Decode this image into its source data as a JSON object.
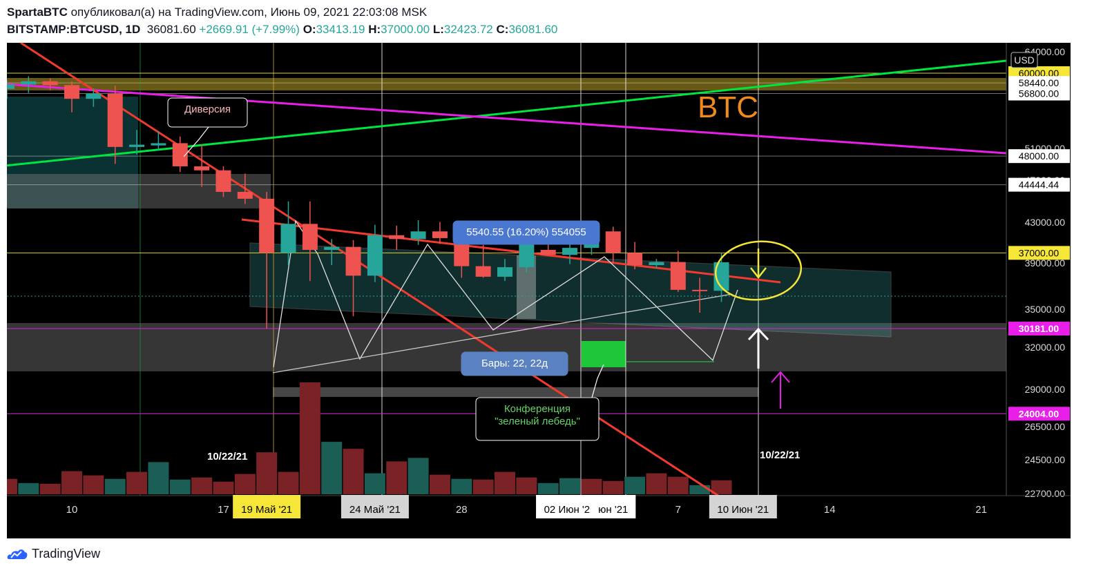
{
  "header": {
    "author": "SpartaBTC",
    "published_text": "опубликовал(а) на TradingView.com, Июнь 09, 2021 22:03:08 MSK",
    "symbol": "BITSTAMP:BTCUSD, 1D",
    "last": "36081.60",
    "change": "+2669.91 (+7.99%)",
    "o_label": "O:",
    "o": "33413.19",
    "h_label": "H:",
    "h": "37000.00",
    "l_label": "L:",
    "l": "32423.72",
    "c_label": "C:",
    "c": "36081.60"
  },
  "brand": {
    "name": "TradingView"
  },
  "colors": {
    "up": "#26a69a",
    "down": "#ef5350",
    "green_line": "#00e640",
    "magenta": "#e91ee9",
    "red_line": "#f23a2f",
    "yellow": "#f5e637",
    "label_blue": "#4a78d0"
  },
  "chart_data": {
    "type": "candlestick",
    "currency": "USD",
    "watermark": "BTC",
    "price_axis": {
      "ticks": [
        "64000.00",
        "51000.00",
        "47000.00",
        "43000.00",
        "39000.00",
        "35000.00",
        "32000.00",
        "29000.00",
        "26500.00",
        "24500.00",
        "22700.00"
      ]
    },
    "price_labels": [
      {
        "text": "60000.00",
        "value": 60000,
        "style": "yellow"
      },
      {
        "text": "58440.00",
        "value": 58440,
        "style": "white"
      },
      {
        "text": "56800.00",
        "value": 56800,
        "style": "white"
      },
      {
        "text": "48000.00",
        "value": 48000,
        "style": "white"
      },
      {
        "text": "44444.44",
        "value": 44444.44,
        "style": "white"
      },
      {
        "text": "37000.00",
        "value": 37000,
        "style": "yellow"
      },
      {
        "text": "30181.00",
        "value": 30181,
        "style": "magenta"
      },
      {
        "text": "24004.00",
        "value": 24004,
        "style": "magenta"
      }
    ],
    "time_axis": {
      "ticks": [
        {
          "text": "10",
          "day": 0
        },
        {
          "text": "17",
          "day": 7
        },
        {
          "text": "28",
          "day": 18
        },
        {
          "text": "7",
          "day": 28
        },
        {
          "text": "14",
          "day": 35
        },
        {
          "text": "21",
          "day": 42
        }
      ],
      "highlighted": [
        {
          "text": "19 Май '21",
          "day": 9,
          "style": "yellow"
        },
        {
          "text": "24 Май '21",
          "day": 14,
          "style": "light"
        },
        {
          "text": "02 Июн '21",
          "day": 23,
          "style": "white"
        },
        {
          "text": "юн '21",
          "day": 25,
          "style": "white"
        },
        {
          "text": "10 Июн '21",
          "day": 31,
          "style": "light"
        }
      ]
    },
    "candles": [
      {
        "day": -3,
        "o": 57500,
        "h": 58800,
        "l": 56000,
        "c": 58200
      },
      {
        "day": -2,
        "o": 58200,
        "h": 59500,
        "l": 56900,
        "c": 58700
      },
      {
        "day": -1,
        "o": 58700,
        "h": 59200,
        "l": 57300,
        "c": 58100
      },
      {
        "day": 0,
        "o": 58100,
        "h": 58700,
        "l": 54000,
        "c": 56000
      },
      {
        "day": 1,
        "o": 56000,
        "h": 57600,
        "l": 54800,
        "c": 56800
      },
      {
        "day": 2,
        "o": 56800,
        "h": 58000,
        "l": 47000,
        "c": 49200
      },
      {
        "day": 3,
        "o": 49200,
        "h": 51500,
        "l": 48200,
        "c": 49500
      },
      {
        "day": 4,
        "o": 49400,
        "h": 51300,
        "l": 48700,
        "c": 49700
      },
      {
        "day": 5,
        "o": 49700,
        "h": 50600,
        "l": 46000,
        "c": 46700
      },
      {
        "day": 6,
        "o": 46700,
        "h": 49500,
        "l": 44200,
        "c": 46200
      },
      {
        "day": 7,
        "o": 46200,
        "h": 46700,
        "l": 43000,
        "c": 43600
      },
      {
        "day": 8,
        "o": 43600,
        "h": 45800,
        "l": 42200,
        "c": 42800
      },
      {
        "day": 9,
        "o": 42800,
        "h": 43600,
        "l": 30181,
        "c": 37000
      },
      {
        "day": 10,
        "o": 37000,
        "h": 42500,
        "l": 35800,
        "c": 40000
      },
      {
        "day": 11,
        "o": 40000,
        "h": 42500,
        "l": 34300,
        "c": 37300
      },
      {
        "day": 12,
        "o": 37300,
        "h": 38400,
        "l": 35800,
        "c": 37600
      },
      {
        "day": 13,
        "o": 37600,
        "h": 38300,
        "l": 31200,
        "c": 34800
      },
      {
        "day": 14,
        "o": 34800,
        "h": 39900,
        "l": 34200,
        "c": 38800
      },
      {
        "day": 15,
        "o": 38800,
        "h": 39800,
        "l": 37300,
        "c": 38400
      },
      {
        "day": 16,
        "o": 38400,
        "h": 40400,
        "l": 37800,
        "c": 39200
      },
      {
        "day": 17,
        "o": 39200,
        "h": 40200,
        "l": 37900,
        "c": 38500
      },
      {
        "day": 18,
        "o": 38500,
        "h": 39300,
        "l": 34600,
        "c": 35700
      },
      {
        "day": 19,
        "o": 35700,
        "h": 37800,
        "l": 34600,
        "c": 34700
      },
      {
        "day": 20,
        "o": 34700,
        "h": 36400,
        "l": 34300,
        "c": 35600
      },
      {
        "day": 21,
        "o": 35600,
        "h": 39400,
        "l": 35100,
        "c": 39200
      },
      {
        "day": 22,
        "o": 37300,
        "h": 38300,
        "l": 36700,
        "c": 36800
      },
      {
        "day": 23,
        "o": 36800,
        "h": 38000,
        "l": 35900,
        "c": 37500
      },
      {
        "day": 24,
        "o": 37500,
        "h": 39200,
        "l": 36800,
        "c": 38700
      },
      {
        "day": 25,
        "o": 39200,
        "h": 39700,
        "l": 36000,
        "c": 37000
      },
      {
        "day": 26,
        "o": 37000,
        "h": 38100,
        "l": 35400,
        "c": 35800
      },
      {
        "day": 27,
        "o": 35800,
        "h": 36400,
        "l": 35500,
        "c": 36100
      },
      {
        "day": 28,
        "o": 36100,
        "h": 37200,
        "l": 33300,
        "c": 33500
      },
      {
        "day": 29,
        "o": 33500,
        "h": 34600,
        "l": 31500,
        "c": 33400
      },
      {
        "day": 30,
        "o": 33413.19,
        "h": 37000,
        "l": 32423.72,
        "c": 36081.6
      }
    ],
    "volume": [
      {
        "day": -3,
        "v": 22,
        "up": false
      },
      {
        "day": -2,
        "v": 16,
        "up": true
      },
      {
        "day": -1,
        "v": 15,
        "up": false
      },
      {
        "day": 0,
        "v": 33,
        "up": false
      },
      {
        "day": 1,
        "v": 27,
        "up": false
      },
      {
        "day": 2,
        "v": 22,
        "up": true
      },
      {
        "day": 3,
        "v": 32,
        "up": false
      },
      {
        "day": 4,
        "v": 46,
        "up": true
      },
      {
        "day": 5,
        "v": 21,
        "up": true
      },
      {
        "day": 6,
        "v": 24,
        "up": false
      },
      {
        "day": 7,
        "v": 18,
        "up": false
      },
      {
        "day": 8,
        "v": 29,
        "up": false
      },
      {
        "day": 9,
        "v": 60,
        "up": false
      },
      {
        "day": 10,
        "v": 32,
        "up": false
      },
      {
        "day": 11,
        "v": 160,
        "up": false
      },
      {
        "day": 12,
        "v": 75,
        "up": true
      },
      {
        "day": 13,
        "v": 65,
        "up": false
      },
      {
        "day": 14,
        "v": 30,
        "up": true
      },
      {
        "day": 15,
        "v": 47,
        "up": false
      },
      {
        "day": 16,
        "v": 52,
        "up": true
      },
      {
        "day": 17,
        "v": 28,
        "up": false
      },
      {
        "day": 18,
        "v": 22,
        "up": true
      },
      {
        "day": 19,
        "v": 21,
        "up": false
      },
      {
        "day": 20,
        "v": 32,
        "up": false
      },
      {
        "day": 21,
        "v": 24,
        "up": false
      },
      {
        "day": 22,
        "v": 16,
        "up": true
      },
      {
        "day": 23,
        "v": 23,
        "up": true
      },
      {
        "day": 24,
        "v": 22,
        "up": false
      },
      {
        "day": 25,
        "v": 19,
        "up": false
      },
      {
        "day": 26,
        "v": 25,
        "up": true
      },
      {
        "day": 27,
        "v": 30,
        "up": false
      },
      {
        "day": 28,
        "v": 25,
        "up": false
      },
      {
        "day": 29,
        "v": 13,
        "up": true
      },
      {
        "day": 30,
        "v": 20,
        "up": false
      }
    ],
    "volume_labels": [
      "10/22/21",
      "10/22/21"
    ],
    "annotations": {
      "diversion": "Диверсия",
      "measure": "5540.55 (16.20%) 554055",
      "bars": "Бары: 22, 22д",
      "conference_line1": "Конференция",
      "conference_line2": "\"зеленый лебедь\""
    }
  }
}
